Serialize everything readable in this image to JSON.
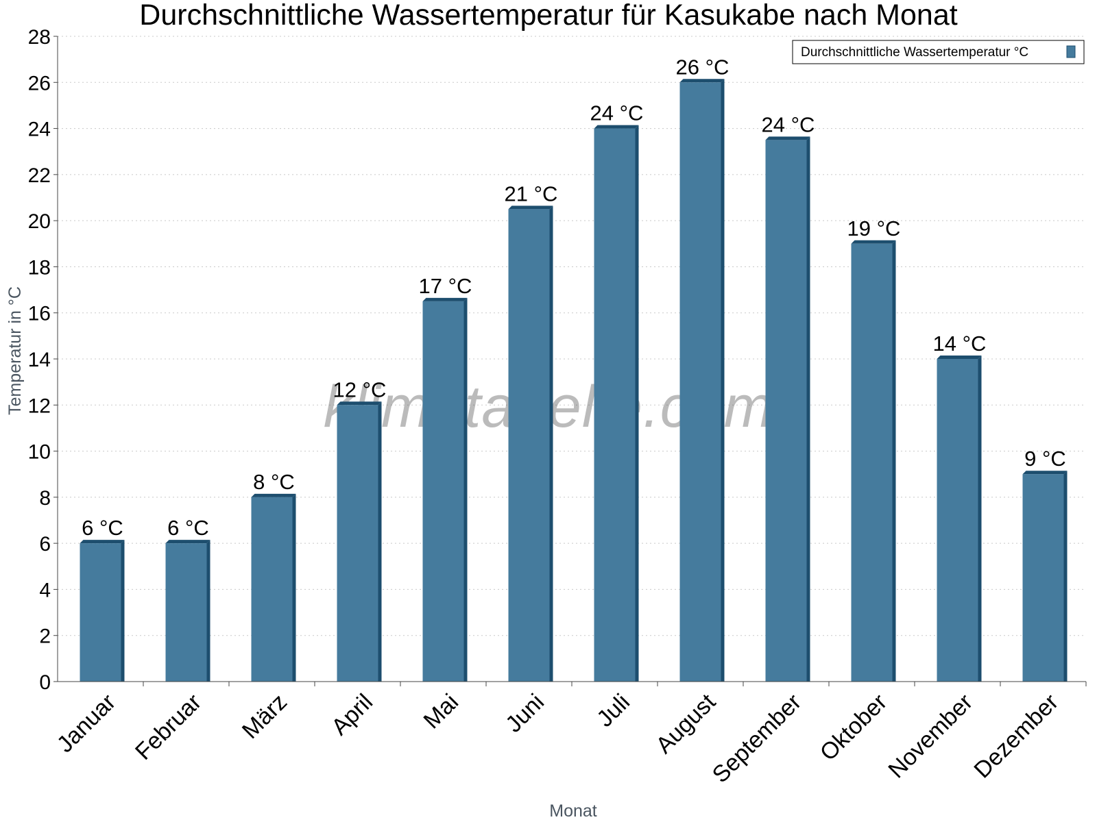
{
  "watermark": "klimatabelle.com",
  "colors": {
    "bar_front": "#457b9d",
    "bar_dark": "#1d4e6e",
    "bar_top": "#2f6283",
    "grid": "#c8c8c8",
    "axis": "#444444"
  },
  "chart_data": {
    "type": "bar",
    "title": "Durchschnittliche Wassertemperatur für Kasukabe nach Monat",
    "xlabel": "Monat",
    "ylabel": "Temperatur in °C",
    "ylim": [
      0,
      28
    ],
    "yticks": [
      0,
      2,
      4,
      6,
      8,
      10,
      12,
      14,
      16,
      18,
      20,
      22,
      24,
      26,
      28
    ],
    "grid": true,
    "legend": "top-right",
    "categories": [
      "Januar",
      "Februar",
      "März",
      "April",
      "Mai",
      "Juni",
      "Juli",
      "August",
      "September",
      "Oktober",
      "November",
      "Dezember"
    ],
    "series": [
      {
        "name": "Durchschnittliche Wassertemperatur °C",
        "values": [
          6,
          6,
          8,
          12,
          16.5,
          20.5,
          24,
          26,
          23.5,
          19,
          14,
          9
        ],
        "labels": [
          "6 °C",
          "6 °C",
          "8 °C",
          "12 °C",
          "17 °C",
          "21 °C",
          "24 °C",
          "26 °C",
          "24 °C",
          "19 °C",
          "14 °C",
          "9 °C"
        ]
      }
    ]
  }
}
